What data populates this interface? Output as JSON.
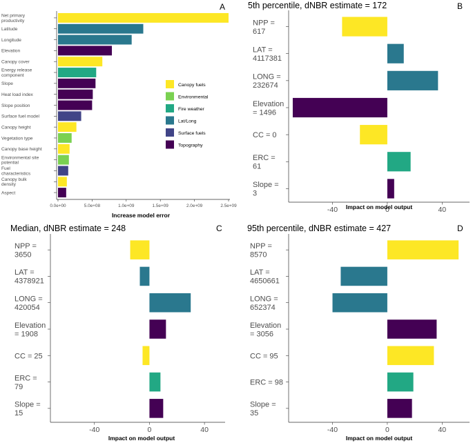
{
  "chart_data": [
    {
      "id": "A",
      "type": "bar",
      "orientation": "horizontal",
      "panel_label": "A",
      "title": "",
      "xlabel": "Increase model error",
      "ylabel": "",
      "xlim": [
        -20000000.0,
        2500000000.0
      ],
      "xticks": [
        0,
        500000000.0,
        1000000000.0,
        1500000000.0,
        2000000000.0,
        2500000000.0
      ],
      "xtick_labels": [
        "0.0e+00",
        "5.0e+08",
        "1.0e+09",
        "1.5e+09",
        "2.0e+09",
        "2.5e+09"
      ],
      "categories": [
        [
          "Net primary",
          "productivity"
        ],
        [
          "Latitude"
        ],
        [
          "Longitude"
        ],
        [
          "Elevation"
        ],
        [
          "Canopy cover"
        ],
        [
          "Energy release",
          "component"
        ],
        [
          "Slope"
        ],
        [
          "Heat load index"
        ],
        [
          "Slope position"
        ],
        [
          "Surface fuel model"
        ],
        [
          "Canopy height"
        ],
        [
          "Vegetation type"
        ],
        [
          "Canopy base height"
        ],
        [
          "Environmental site",
          "potential"
        ],
        [
          "Fuel",
          "characteristics"
        ],
        [
          "Canopy bulk",
          "density"
        ],
        [
          "Aspect"
        ]
      ],
      "values": [
        2500000000.0,
        1250000000.0,
        1080000000.0,
        790000000.0,
        650000000.0,
        560000000.0,
        550000000.0,
        510000000.0,
        500000000.0,
        340000000.0,
        270000000.0,
        200000000.0,
        170000000.0,
        160000000.0,
        150000000.0,
        130000000.0,
        120000000.0
      ],
      "groups": [
        "Canopy fuels",
        "Lat/Long",
        "Lat/Long",
        "Topography",
        "Canopy fuels",
        "Fire weather",
        "Topography",
        "Topography",
        "Topography",
        "Surface fuels",
        "Canopy fuels",
        "Environmental",
        "Canopy fuels",
        "Environmental",
        "Surface fuels",
        "Canopy fuels",
        "Topography"
      ],
      "legend": {
        "entries": [
          "Canopy fuels",
          "Environmental",
          "Fire weather",
          "Lat/Long",
          "Surface fuels",
          "Topography"
        ],
        "colors": [
          "#fde725",
          "#7ad151",
          "#22a884",
          "#2a788e",
          "#414487",
          "#440154"
        ],
        "position": "right-center"
      }
    },
    {
      "id": "B",
      "type": "bar",
      "orientation": "horizontal",
      "panel_label": "B",
      "title": "5th percentile, dNBR estimate = 172",
      "xlabel": "Impact on model output",
      "xlim": [
        -72,
        60
      ],
      "xticks": [
        -40,
        0,
        40
      ],
      "xtick_labels": [
        "-40",
        "0",
        "40"
      ],
      "categories": [
        [
          "NPP =",
          "617"
        ],
        [
          "LAT =",
          "4117381"
        ],
        [
          "LONG =",
          "232674"
        ],
        [
          "Elevation",
          "= 1496"
        ],
        [
          "CC = 0"
        ],
        [
          "ERC =",
          "61"
        ],
        [
          "Slope =",
          "3"
        ]
      ],
      "values": [
        -33,
        12,
        37,
        -69,
        -20,
        17,
        5
      ],
      "colors": [
        "#fde725",
        "#2a788e",
        "#2a788e",
        "#440154",
        "#fde725",
        "#22a884",
        "#440154"
      ]
    },
    {
      "id": "C",
      "type": "bar",
      "orientation": "horizontal",
      "panel_label": "C",
      "title": "Median, dNBR estimate = 248",
      "xlabel": "Impact on model output",
      "xlim": [
        -72,
        55
      ],
      "xticks": [
        -40,
        0,
        40
      ],
      "xtick_labels": [
        "-40",
        "0",
        "40"
      ],
      "categories": [
        [
          "NPP =",
          "3650"
        ],
        [
          "LAT =",
          "4378921"
        ],
        [
          "LONG =",
          "420054"
        ],
        [
          "Elevation",
          "= 1908"
        ],
        [
          "CC = 25"
        ],
        [
          "ERC =",
          "79"
        ],
        [
          "Slope =",
          "15"
        ]
      ],
      "values": [
        -14,
        -7,
        30,
        12,
        -5,
        8,
        10
      ],
      "colors": [
        "#fde725",
        "#2a788e",
        "#2a788e",
        "#440154",
        "#fde725",
        "#22a884",
        "#440154"
      ]
    },
    {
      "id": "D",
      "type": "bar",
      "orientation": "horizontal",
      "panel_label": "D",
      "title": "95th percentile, dNBR estimate = 427",
      "xlabel": "Impact on model output",
      "xlim": [
        -72,
        60
      ],
      "xticks": [
        -40,
        0,
        40
      ],
      "xtick_labels": [
        "-40",
        "0",
        "40"
      ],
      "categories": [
        [
          "NPP =",
          "8570"
        ],
        [
          "LAT =",
          "4650661"
        ],
        [
          "LONG =",
          "652374"
        ],
        [
          "Elevation",
          "= 3056"
        ],
        [
          "CC = 95"
        ],
        [
          "ERC = 98"
        ],
        [
          "Slope =",
          "35"
        ]
      ],
      "values": [
        52,
        -34,
        -40,
        36,
        34,
        19,
        18
      ],
      "colors": [
        "#fde725",
        "#2a788e",
        "#2a788e",
        "#440154",
        "#fde725",
        "#22a884",
        "#440154"
      ]
    }
  ]
}
